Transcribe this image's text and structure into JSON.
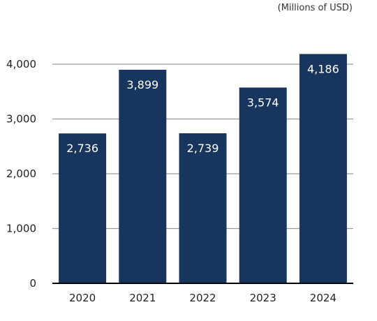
{
  "unit_label": "(Millions of USD)",
  "colors": {
    "bar": "#18355e",
    "grid": "#9a9a9a",
    "axis": "#000000",
    "tick_text": "#222222",
    "bar_label": "#ffffff"
  },
  "chart_data": {
    "type": "bar",
    "categories": [
      "2020",
      "2021",
      "2022",
      "2023",
      "2024"
    ],
    "values": [
      2736,
      3899,
      2739,
      3574,
      4186
    ],
    "data_labels": [
      "2,736",
      "3,899",
      "2,739",
      "3,574",
      "4,186"
    ],
    "yticks": [
      0,
      1000,
      2000,
      3000,
      4000
    ],
    "ytick_labels": [
      "0",
      "1,000",
      "2,000",
      "3,000",
      "4,000"
    ],
    "ylim": [
      0,
      4400
    ],
    "grid": true,
    "legend": "none",
    "title": "",
    "xlabel": "",
    "ylabel": ""
  }
}
